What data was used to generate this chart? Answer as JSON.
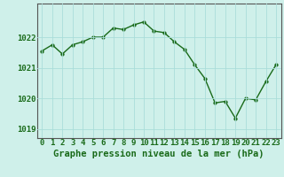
{
  "x": [
    0,
    1,
    2,
    3,
    4,
    5,
    6,
    7,
    8,
    9,
    10,
    11,
    12,
    13,
    14,
    15,
    16,
    17,
    18,
    19,
    20,
    21,
    22,
    23
  ],
  "y": [
    1021.55,
    1021.75,
    1021.45,
    1021.75,
    1021.85,
    1022.0,
    1022.0,
    1022.3,
    1022.25,
    1022.4,
    1022.5,
    1022.2,
    1022.15,
    1021.85,
    1021.6,
    1021.1,
    1020.65,
    1019.85,
    1019.9,
    1019.35,
    1020.0,
    1019.95,
    1020.55,
    1021.1
  ],
  "line_color": "#1a6b1a",
  "marker_color": "#1a6b1a",
  "bg_color": "#cff0ea",
  "grid_color": "#aaddda",
  "axis_color": "#555555",
  "label_color": "#1a6b1a",
  "xlabel": "Graphe pression niveau de la mer (hPa)",
  "ylim": [
    1018.7,
    1023.1
  ],
  "yticks": [
    1019,
    1020,
    1021,
    1022
  ],
  "xticks": [
    0,
    1,
    2,
    3,
    4,
    5,
    6,
    7,
    8,
    9,
    10,
    11,
    12,
    13,
    14,
    15,
    16,
    17,
    18,
    19,
    20,
    21,
    22,
    23
  ],
  "xlabel_fontsize": 7.5,
  "tick_fontsize": 6.5,
  "marker_size": 2.5,
  "line_width": 1.0
}
